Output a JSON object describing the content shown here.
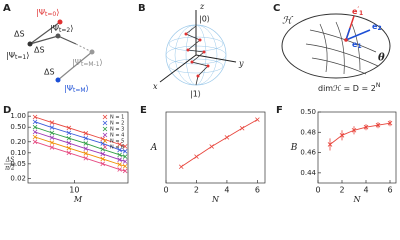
{
  "panel_a": {
    "label": "A",
    "states": [
      {
        "psi": "|Ψ",
        "sub": "t=0",
        "ket": "⟩"
      },
      {
        "psi": "|Ψ",
        "sub": "t=1",
        "ket": "⟩"
      },
      {
        "psi": "|Ψ",
        "sub": "t=2",
        "ket": "⟩"
      },
      {
        "psi": "|Ψ",
        "sub": "t=M-1",
        "ket": "⟩"
      },
      {
        "psi": "|Ψ",
        "sub": "t=M",
        "ket": "⟩"
      }
    ],
    "steps": [
      "ΔS",
      "ΔS",
      "ΔS"
    ]
  },
  "panel_b": {
    "label": "B",
    "axes": [
      "z",
      "y",
      "x"
    ],
    "kets": [
      "|0⟩",
      "|1⟩"
    ]
  },
  "panel_c": {
    "label": "C",
    "space": "ℋ",
    "vectors": [
      {
        "text": "e",
        "sup": "′",
        "sub": "1"
      },
      {
        "text": "e",
        "sub": "2"
      },
      {
        "text": "e",
        "sub": "1"
      }
    ],
    "angle": "θ",
    "dimension": {
      "text": "dimℋ = D = 2",
      "sup": "N"
    }
  },
  "chart_data": [
    {
      "panel": "D",
      "type": "line",
      "log_x": true,
      "log_y": true,
      "x_label": "M",
      "y_label": {
        "numerator": "ΔS",
        "denominator": "π/2"
      },
      "x": [
        2,
        4,
        8,
        16,
        32,
        64,
        80
      ],
      "series": [
        {
          "name": "N = 1",
          "color": "#e8453c",
          "values": [
            0.95,
            0.67,
            0.48,
            0.34,
            0.24,
            0.17,
            0.15
          ]
        },
        {
          "name": "N = 2",
          "color": "#3b5bdb",
          "values": [
            0.7,
            0.49,
            0.35,
            0.25,
            0.18,
            0.12,
            0.11
          ]
        },
        {
          "name": "N = 3",
          "color": "#2f9e44",
          "values": [
            0.5,
            0.35,
            0.25,
            0.18,
            0.125,
            0.088,
            0.079
          ]
        },
        {
          "name": "N = 4",
          "color": "#9c36b5",
          "values": [
            0.37,
            0.26,
            0.185,
            0.13,
            0.093,
            0.065,
            0.058
          ]
        },
        {
          "name": "N = 5",
          "color": "#f08c00",
          "values": [
            0.27,
            0.19,
            0.135,
            0.096,
            0.068,
            0.048,
            0.043
          ]
        },
        {
          "name": "N = 6",
          "color": "#e64980",
          "values": [
            0.2,
            0.14,
            0.1,
            0.071,
            0.05,
            0.035,
            0.032
          ]
        }
      ],
      "xlim": [
        1.5,
        90
      ],
      "ylim": [
        0.015,
        1.3
      ],
      "xticks": [
        10
      ],
      "yticks": [
        {
          "value": 1,
          "label": "1.00"
        },
        {
          "value": 0.5,
          "label": "0.50"
        },
        {
          "value": 0.2,
          "label": "0.20"
        },
        {
          "value": 0.1,
          "label": "0.10"
        },
        0.05,
        0.02
      ],
      "legend": "upper right"
    },
    {
      "panel": "E",
      "type": "line",
      "x_label": "N",
      "y_label": "A",
      "x": [
        1,
        2,
        3,
        4,
        5,
        6
      ],
      "values": [
        0.32,
        0.52,
        0.72,
        0.9,
        1.08,
        1.25
      ],
      "color": "#e8453c",
      "xlim": [
        0,
        6.5
      ],
      "ylim": [
        0,
        1.4
      ],
      "xticks": [
        0,
        2,
        4,
        6
      ]
    },
    {
      "panel": "F",
      "type": "line",
      "x_label": "N",
      "y_label": "B",
      "x": [
        1,
        2,
        3,
        4,
        5,
        6
      ],
      "values": [
        0.468,
        0.477,
        0.482,
        0.485,
        0.487,
        0.489
      ],
      "errors": [
        0.006,
        0.005,
        0.004,
        0.003,
        0.003,
        0.003
      ],
      "color": "#e8453c",
      "xlim": [
        0,
        6.5
      ],
      "ylim": [
        0.43,
        0.5
      ],
      "xticks": [
        0,
        2,
        4,
        6
      ],
      "yticks": [
        0.44,
        0.46,
        0.48,
        {
          "value": 0.5,
          "label": "0.50"
        }
      ]
    }
  ]
}
